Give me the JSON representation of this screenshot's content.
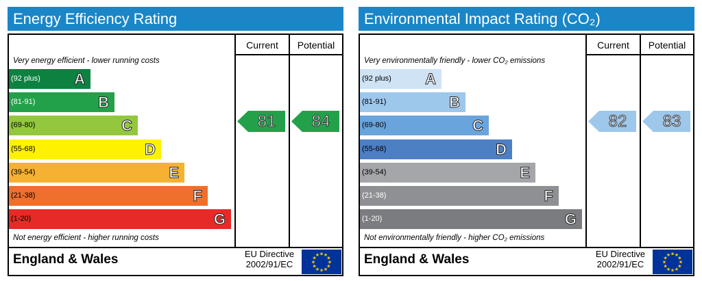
{
  "chart_data": [
    {
      "type": "bar",
      "title": "Energy Efficiency Rating",
      "col_current": "Current",
      "col_potential": "Potential",
      "top_note": "Very energy efficient - lower running costs",
      "bottom_note": "Not energy efficient - higher running costs",
      "region": "England & Wales",
      "directive_line1": "EU Directive",
      "directive_line2": "2002/91/EC",
      "bands": [
        {
          "letter": "A",
          "range": "(92 plus)",
          "color": "#0d8140",
          "text_color": "#ffffff",
          "range_color": "#ffffff",
          "letter_color": "#ffffff",
          "width": 0.245
        },
        {
          "letter": "B",
          "range": "(81-91)",
          "color": "#23a14a",
          "text_color": "#ffffff",
          "range_color": "#ffffff",
          "letter_color": "#ffffff",
          "width": 0.316
        },
        {
          "letter": "C",
          "range": "(69-80)",
          "color": "#93c83e",
          "text_color": "#000000",
          "range_color": "#000000",
          "letter_color": "#ffffff",
          "width": 0.386
        },
        {
          "letter": "D",
          "range": "(55-68)",
          "color": "#fff200",
          "text_color": "#000000",
          "range_color": "#000000",
          "letter_color": "#ffffff",
          "width": 0.457
        },
        {
          "letter": "E",
          "range": "(39-54)",
          "color": "#f7b132",
          "text_color": "#000000",
          "range_color": "#000000",
          "letter_color": "#ffffff",
          "width": 0.526
        },
        {
          "letter": "F",
          "range": "(21-38)",
          "color": "#ef6f2d",
          "text_color": "#000000",
          "range_color": "#000000",
          "letter_color": "#ffffff",
          "width": 0.596
        },
        {
          "letter": "G",
          "range": "(1-20)",
          "color": "#e72a27",
          "text_color": "#000000",
          "range_color": "#000000",
          "letter_color": "#ffffff",
          "width": 0.666
        }
      ],
      "current": {
        "value": "81",
        "band": "B",
        "color": "#23a14a"
      },
      "potential": {
        "value": "84",
        "band": "B",
        "color": "#23a14a"
      }
    },
    {
      "type": "bar",
      "title": "Environmental Impact Rating (CO₂)",
      "col_current": "Current",
      "col_potential": "Potential",
      "top_note": "Very environmentally friendly - lower CO₂ emissions",
      "bottom_note": "Not environmentally friendly - higher CO₂ emissions",
      "region": "England & Wales",
      "directive_line1": "EU Directive",
      "directive_line2": "2002/91/EC",
      "bands": [
        {
          "letter": "A",
          "range": "(92 plus)",
          "color": "#cfe3f5",
          "range_color": "#000000",
          "letter_color": "#ffffff",
          "width": 0.245
        },
        {
          "letter": "B",
          "range": "(81-91)",
          "color": "#9ec7ec",
          "range_color": "#000000",
          "letter_color": "#ffffff",
          "width": 0.316
        },
        {
          "letter": "C",
          "range": "(69-80)",
          "color": "#6aa4dc",
          "range_color": "#000000",
          "letter_color": "#ffffff",
          "width": 0.386
        },
        {
          "letter": "D",
          "range": "(55-68)",
          "color": "#4d7fc4",
          "range_color": "#000000",
          "letter_color": "#ffffff",
          "width": 0.457
        },
        {
          "letter": "E",
          "range": "(39-54)",
          "color": "#a4a6a9",
          "range_color": "#000000",
          "letter_color": "#ffffff",
          "width": 0.526
        },
        {
          "letter": "F",
          "range": "(21-38)",
          "color": "#8e9093",
          "range_color": "#ffffff",
          "letter_color": "#ffffff",
          "width": 0.596
        },
        {
          "letter": "G",
          "range": "(1-20)",
          "color": "#7a7c7f",
          "range_color": "#ffffff",
          "letter_color": "#ffffff",
          "width": 0.666
        }
      ],
      "current": {
        "value": "82",
        "band": "B",
        "color": "#9ec7ec"
      },
      "potential": {
        "value": "83",
        "band": "B",
        "color": "#9ec7ec"
      }
    }
  ]
}
